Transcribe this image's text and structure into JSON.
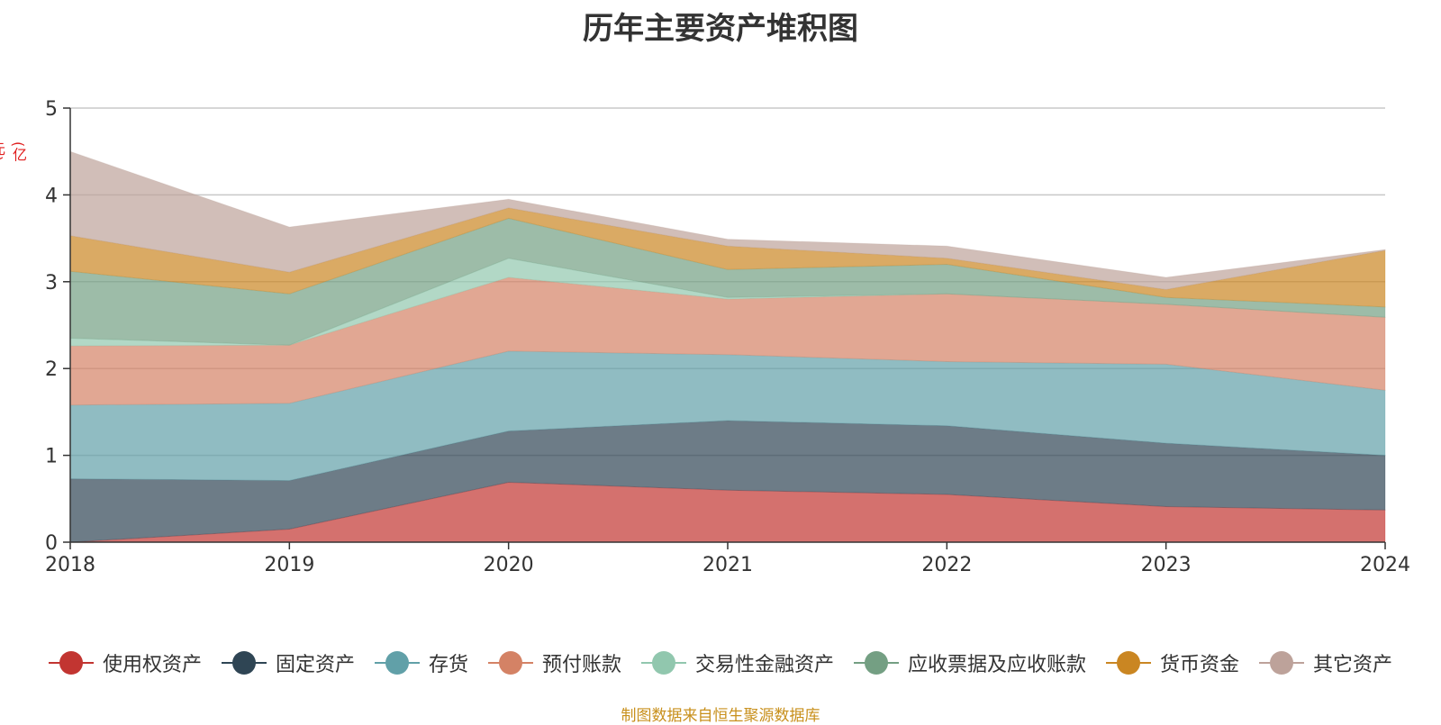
{
  "chart_data": {
    "type": "area",
    "stacked": true,
    "title": "历年主要资产堆积图",
    "unit": "(亿元)",
    "x": [
      "2018",
      "2019",
      "2020",
      "2021",
      "2022",
      "2023",
      "2024"
    ],
    "ylim": [
      0,
      5
    ],
    "yticks": [
      0,
      1,
      2,
      3,
      4,
      5
    ],
    "grid": true,
    "legend_position": "bottom",
    "series": [
      {
        "name": "使用权资产",
        "color": "#c23531",
        "values": [
          0.0,
          0.15,
          0.69,
          0.6,
          0.55,
          0.41,
          0.37
        ]
      },
      {
        "name": "固定资产",
        "color": "#2f4554",
        "values": [
          0.73,
          0.56,
          0.59,
          0.8,
          0.79,
          0.73,
          0.63
        ]
      },
      {
        "name": "存货",
        "color": "#61a0a8",
        "values": [
          0.85,
          0.89,
          0.92,
          0.76,
          0.74,
          0.91,
          0.75
        ]
      },
      {
        "name": "预付账款",
        "color": "#d48265",
        "values": [
          0.68,
          0.67,
          0.85,
          0.64,
          0.78,
          0.69,
          0.84
        ]
      },
      {
        "name": "交易性金融资产",
        "color": "#91c7ae",
        "values": [
          0.09,
          0.0,
          0.22,
          0.02,
          0.0,
          0.0,
          0.0
        ]
      },
      {
        "name": "应收票据及应收账款",
        "color": "#749f83",
        "values": [
          0.77,
          0.59,
          0.46,
          0.32,
          0.34,
          0.08,
          0.12
        ]
      },
      {
        "name": "货币资金",
        "color": "#ca8622",
        "values": [
          0.41,
          0.25,
          0.12,
          0.27,
          0.07,
          0.09,
          0.65
        ]
      },
      {
        "name": "其它资产",
        "color": "#bda29a",
        "values": [
          0.97,
          0.52,
          0.1,
          0.08,
          0.14,
          0.14,
          0.01
        ]
      }
    ]
  },
  "source_note": "制图数据来自恒生聚源数据库"
}
